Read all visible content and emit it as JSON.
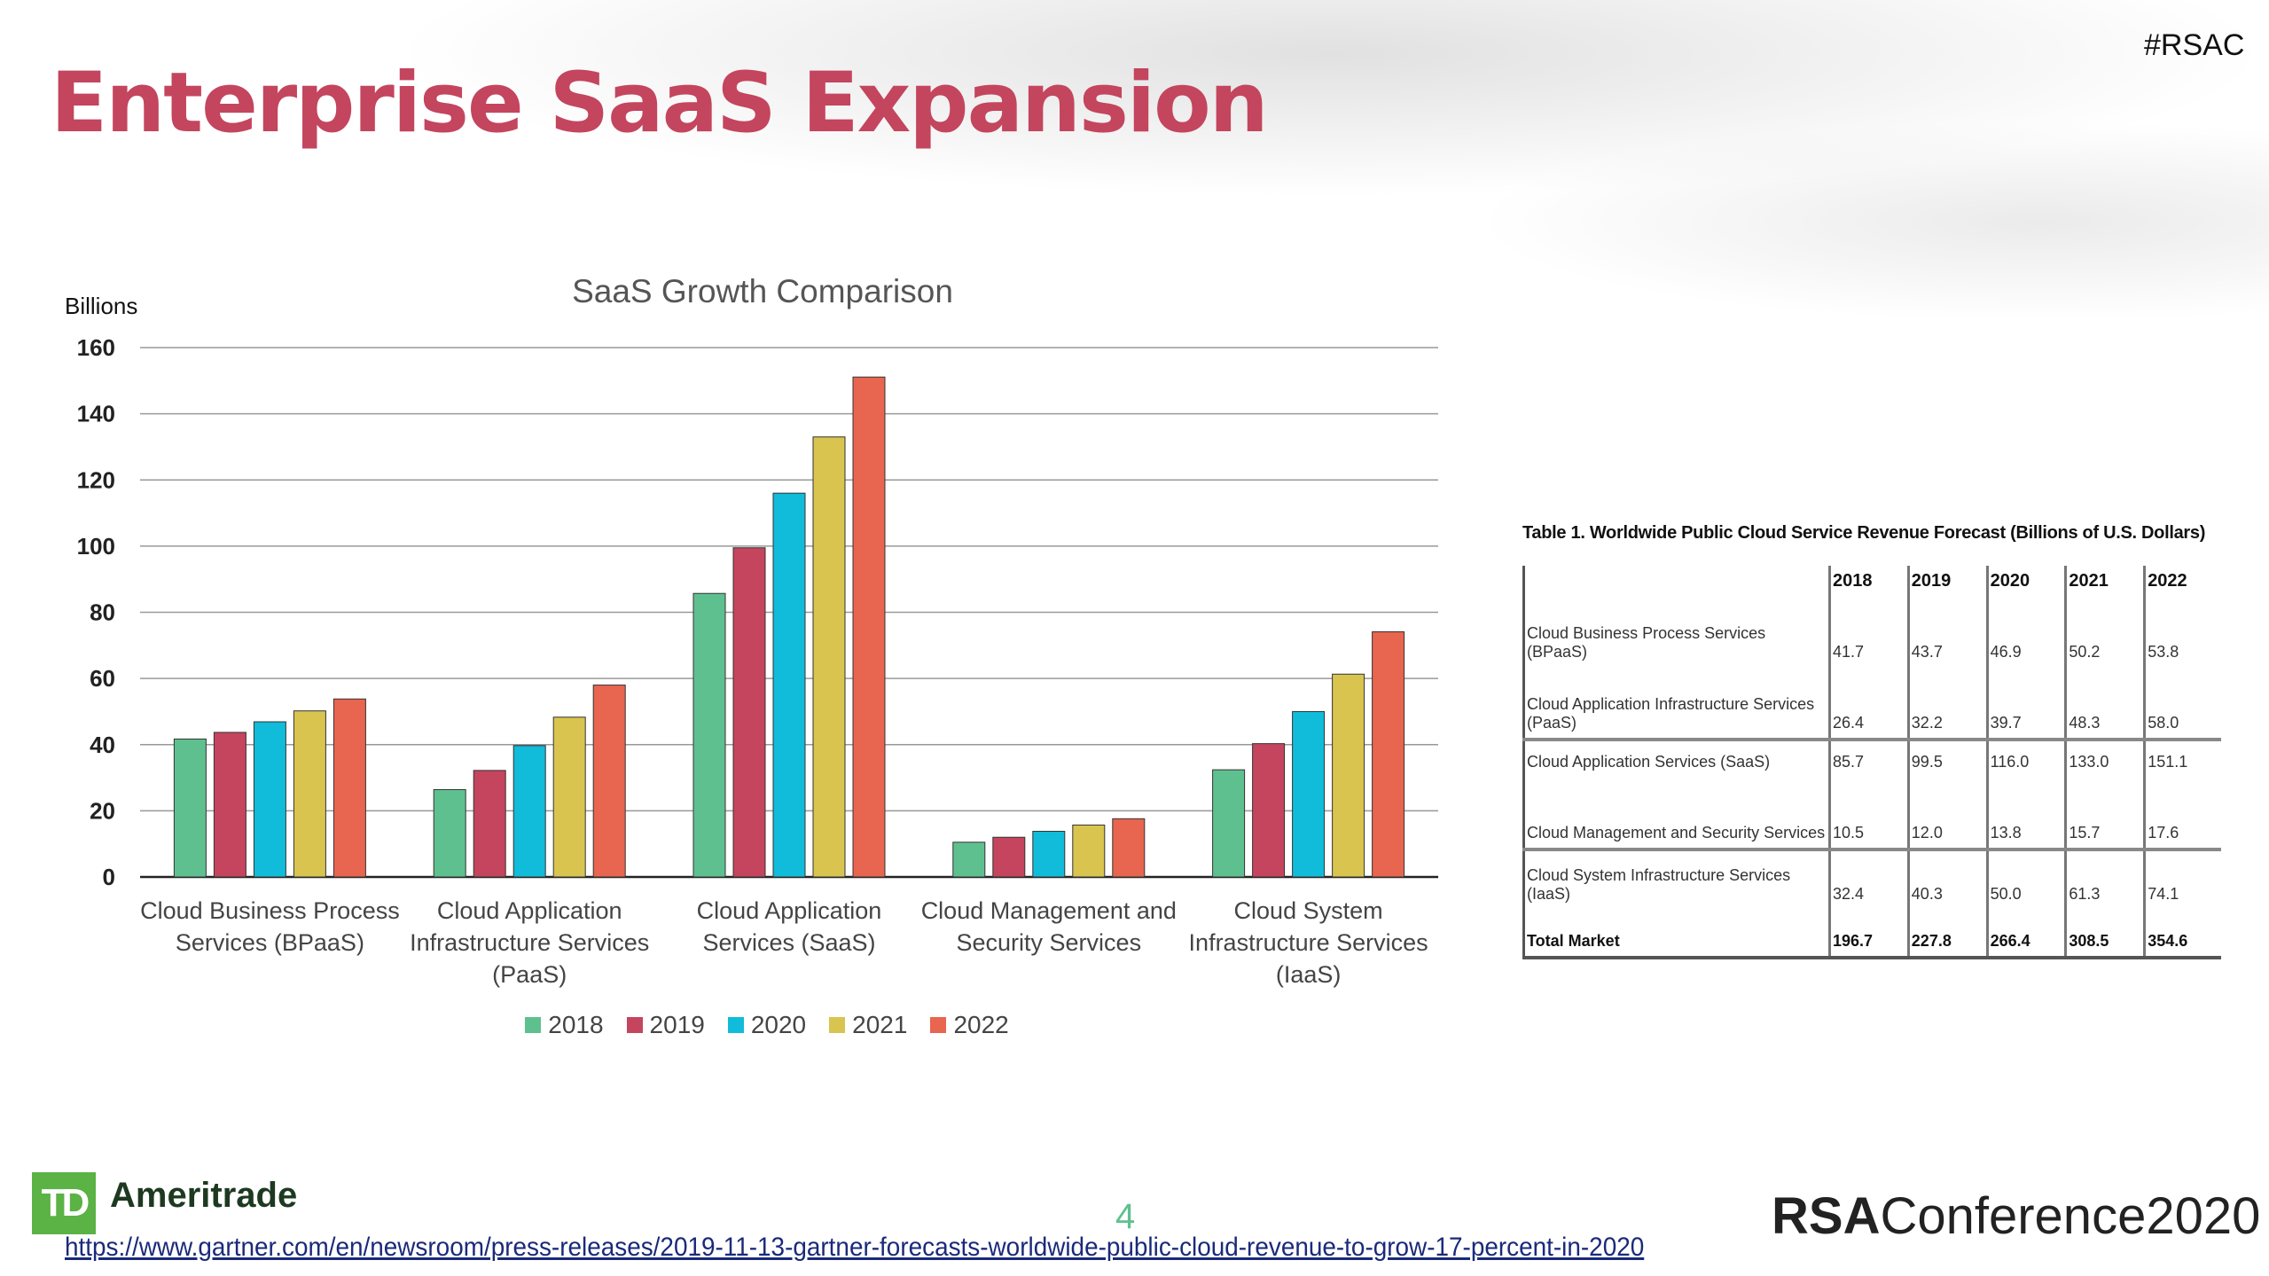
{
  "header": {
    "title": "Enterprise SaaS Expansion",
    "hashtag": "#RSAC"
  },
  "chart_data": {
    "type": "bar",
    "title": "SaaS Growth Comparison",
    "ylabel": "Billions",
    "xlabel": "",
    "ylim": [
      0,
      160
    ],
    "yticks": [
      0,
      20,
      40,
      60,
      80,
      100,
      120,
      140,
      160
    ],
    "grid": true,
    "legend": "bottom",
    "categories": [
      [
        "Cloud Business Process",
        "Services (BPaaS)"
      ],
      [
        "Cloud Application",
        "Infrastructure Services",
        "(PaaS)"
      ],
      [
        "Cloud Application",
        "Services (SaaS)"
      ],
      [
        "Cloud Management and",
        "Security Services"
      ],
      [
        "Cloud System",
        "Infrastructure Services",
        "(IaaS)"
      ]
    ],
    "series": [
      {
        "name": "2018",
        "color": "#5fc08f",
        "values": [
          41.7,
          26.4,
          85.7,
          10.5,
          32.4
        ]
      },
      {
        "name": "2019",
        "color": "#c5455e",
        "values": [
          43.7,
          32.2,
          99.5,
          12.0,
          40.3
        ]
      },
      {
        "name": "2020",
        "color": "#10bcd9",
        "values": [
          46.9,
          39.7,
          116.0,
          13.8,
          50.0
        ]
      },
      {
        "name": "2021",
        "color": "#d9c44f",
        "values": [
          50.2,
          48.3,
          133.0,
          15.7,
          61.3
        ]
      },
      {
        "name": "2022",
        "color": "#e8654f",
        "values": [
          53.8,
          58.0,
          151.1,
          17.6,
          74.1
        ]
      }
    ]
  },
  "table": {
    "title": "Table 1. Worldwide Public Cloud Service Revenue Forecast (Billions of U.S. Dollars)",
    "headers": [
      "",
      "2018",
      "2019",
      "2020",
      "2021",
      "2022"
    ],
    "rows": [
      [
        "Cloud Business Process Services (BPaaS)",
        "41.7",
        "43.7",
        "46.9",
        "50.2",
        "53.8"
      ],
      [
        "Cloud Application Infrastructure Services (PaaS)",
        "26.4",
        "32.2",
        "39.7",
        "48.3",
        "58.0"
      ],
      [
        "Cloud Application Services (SaaS)",
        "85.7",
        "99.5",
        "116.0",
        "133.0",
        "151.1"
      ],
      [
        "Cloud Management and Security Services",
        "10.5",
        "12.0",
        "13.8",
        "15.7",
        "17.6"
      ],
      [
        "Cloud System Infrastructure Services (IaaS)",
        "32.4",
        "40.3",
        "50.0",
        "61.3",
        "74.1"
      ],
      [
        "Total Market",
        "196.7",
        "227.8",
        "266.4",
        "308.5",
        "354.6"
      ]
    ]
  },
  "footer": {
    "logo_td": "TD",
    "logo_name": "Ameritrade",
    "page_number": "4",
    "conference_bold": "RSA",
    "conference_rest": "Conference2020",
    "source_link": "https://www.gartner.com/en/newsroom/press-releases/2019-11-13-gartner-forecasts-worldwide-public-cloud-revenue-to-grow-17-percent-in-2020"
  }
}
